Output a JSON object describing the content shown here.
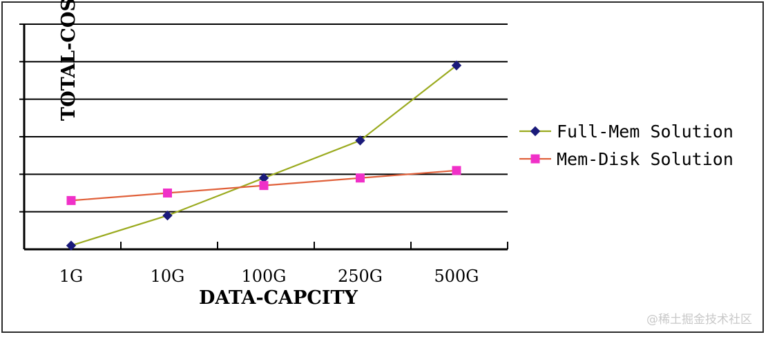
{
  "chart_data": {
    "type": "line",
    "xlabel": "DATA-CAPCITY",
    "ylabel": "TOTAL-COST",
    "categories": [
      "1G",
      "10G",
      "100G",
      "250G",
      "500G"
    ],
    "ylim": [
      0,
      6
    ],
    "grid": true,
    "legend_position": "right",
    "series": [
      {
        "name": "Full-Mem Solution",
        "values": [
          0.1,
          0.9,
          1.9,
          2.9,
          4.9
        ],
        "color": "#9aaa1e",
        "marker": "diamond",
        "marker_color": "#1a1a7a"
      },
      {
        "name": "Mem-Disk Solution",
        "values": [
          1.3,
          1.5,
          1.7,
          1.9,
          2.1
        ],
        "color": "#e0603a",
        "marker": "square",
        "marker_color": "#f030c8"
      }
    ]
  },
  "watermark": "@稀土掘金技术社区"
}
